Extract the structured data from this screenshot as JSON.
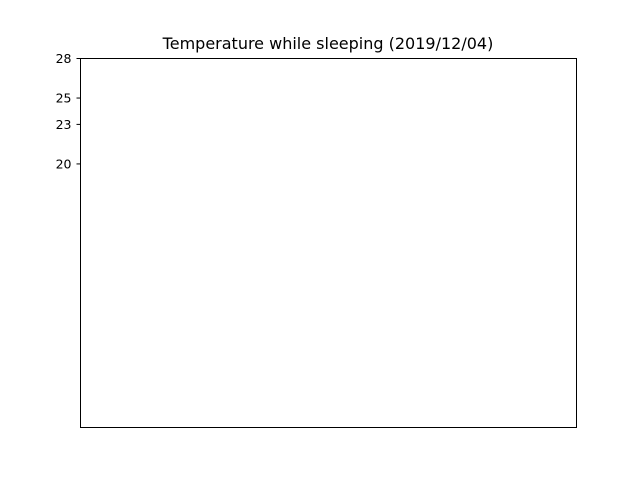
{
  "chart_data": {
    "type": "line",
    "title": "Temperature while sleeping (2019/12/04)",
    "xlabel": "",
    "ylabel": "",
    "yticks": [
      20,
      23,
      25,
      28
    ],
    "ylim": [
      0,
      28
    ],
    "xticks": [],
    "series": [],
    "grid": false,
    "legend": "none"
  },
  "colors": {
    "frame": "#000000",
    "background": "#ffffff"
  }
}
